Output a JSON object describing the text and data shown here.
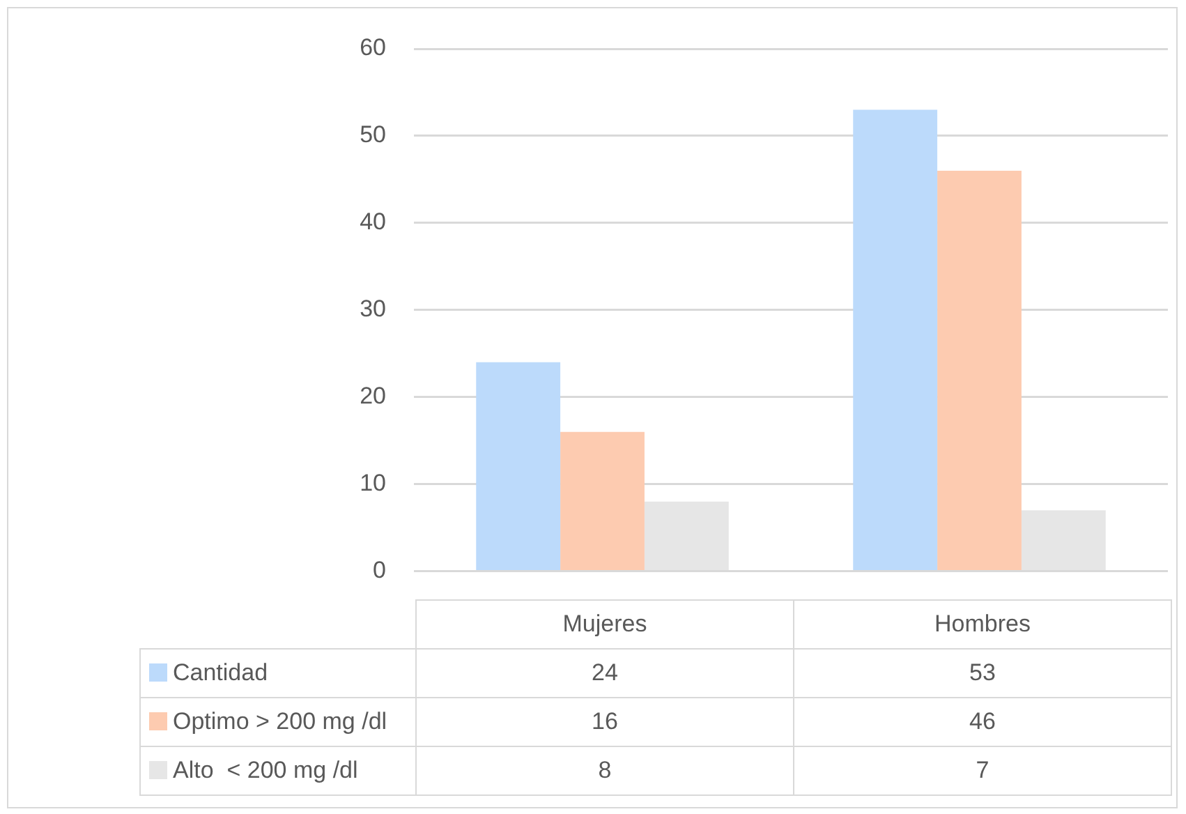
{
  "chart_data": {
    "type": "bar",
    "categories": [
      "Mujeres",
      "Hombres"
    ],
    "series": [
      {
        "name": "Cantidad",
        "color": "#bcdafb",
        "values": [
          24,
          53
        ]
      },
      {
        "name": "Optimo > 200 mg /dl",
        "color": "#fdcbb0",
        "values": [
          16,
          46
        ]
      },
      {
        "name": "Alto  < 200 mg /dl",
        "color": "#e6e6e6",
        "values": [
          8,
          7
        ]
      }
    ],
    "ylim": [
      0,
      60
    ],
    "yticks": [
      0,
      10,
      20,
      30,
      40,
      50,
      60
    ],
    "grid": "y",
    "legend": "bottom left",
    "data_labels": true
  }
}
